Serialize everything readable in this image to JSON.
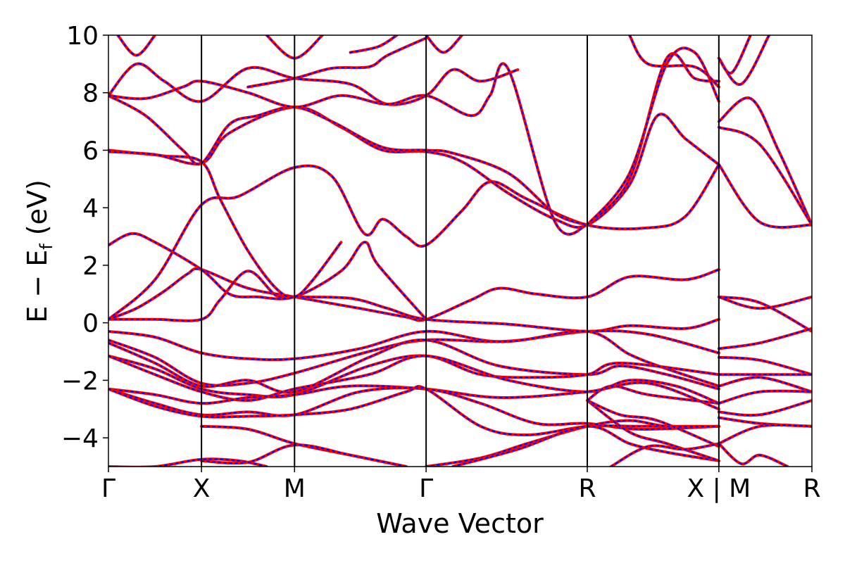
{
  "chart_data": {
    "type": "line",
    "title": "",
    "xlabel": "Wave Vector",
    "ylabel": "E − E",
    "ylabel_sub": "f",
    "ylabel_unit": " (eV)",
    "ylim": [
      -5,
      10
    ],
    "yticks": [
      -4,
      -2,
      0,
      2,
      4,
      6,
      8,
      10
    ],
    "ytick_labels": [
      "−4",
      "−2",
      "0",
      "2",
      "4",
      "6",
      "8",
      "10"
    ],
    "kpath": [
      {
        "label": "Γ",
        "k": 0.0
      },
      {
        "label": "X",
        "k": 1.0
      },
      {
        "label": "M",
        "k": 2.0
      },
      {
        "label": "Γ",
        "k": 3.414
      },
      {
        "label": "R",
        "k": 5.146
      },
      {
        "label": "X | M",
        "k": 6.56
      },
      {
        "label": "R",
        "k": 7.56
      }
    ],
    "vlines_k": [
      1.0,
      2.0,
      3.414,
      5.146,
      6.56
    ],
    "xlim": [
      0,
      7.56
    ],
    "grid": false,
    "series": [
      {
        "color": "#ff0000",
        "style": "solid",
        "width": 4
      },
      {
        "color": "#0000ff",
        "style": "dashed",
        "width": 2
      }
    ],
    "bands": [
      [
        [
          0,
          0.12
        ],
        [
          0.3,
          0.5
        ],
        [
          0.6,
          1.1
        ],
        [
          0.85,
          1.7
        ],
        [
          1.0,
          1.85
        ],
        [
          1.5,
          1.2
        ],
        [
          2.0,
          0.9
        ],
        [
          2.7,
          0.5
        ],
        [
          3.2,
          0.2
        ],
        [
          3.414,
          0.12
        ],
        [
          3.9,
          0.8
        ],
        [
          4.2,
          1.2
        ],
        [
          4.6,
          1.0
        ],
        [
          5.146,
          0.9
        ],
        [
          5.6,
          1.6
        ],
        [
          6.2,
          1.5
        ],
        [
          6.56,
          1.85
        ]
      ],
      [
        [
          0,
          0.12
        ],
        [
          0.5,
          0.12
        ],
        [
          1.0,
          0.12
        ],
        [
          1.2,
          0.8
        ],
        [
          1.5,
          1.8
        ],
        [
          1.8,
          0.95
        ],
        [
          2.0,
          0.9
        ],
        [
          2.6,
          0.85
        ],
        [
          3.0,
          0.5
        ],
        [
          3.414,
          0.12
        ],
        [
          4.3,
          -0.05
        ],
        [
          5.146,
          -0.3
        ],
        [
          5.6,
          -0.1
        ],
        [
          6.2,
          -0.2
        ],
        [
          6.56,
          0.12
        ]
      ],
      [
        [
          0,
          2.7
        ],
        [
          0.25,
          3.1
        ],
        [
          0.5,
          2.8
        ],
        [
          1.0,
          1.85
        ],
        [
          1.3,
          1.0
        ],
        [
          1.6,
          0.9
        ],
        [
          2.0,
          0.9
        ],
        [
          2.5,
          1.8
        ],
        [
          2.75,
          2.8
        ],
        [
          2.9,
          2.0
        ],
        [
          3.414,
          0.12
        ]
      ],
      [
        [
          0,
          0.12
        ],
        [
          0.5,
          1.5
        ],
        [
          1.0,
          4.1
        ],
        [
          1.4,
          4.4
        ],
        [
          2.0,
          5.4
        ],
        [
          2.4,
          5.1
        ],
        [
          2.75,
          3.1
        ],
        [
          2.95,
          3.6
        ],
        [
          3.2,
          3.0
        ],
        [
          3.414,
          2.7
        ],
        [
          3.8,
          3.9
        ],
        [
          4.1,
          4.9
        ],
        [
          4.5,
          4.3
        ],
        [
          5.146,
          3.4
        ],
        [
          5.8,
          3.3
        ],
        [
          6.2,
          3.7
        ],
        [
          6.56,
          5.5
        ]
      ],
      [
        [
          0,
          6.0
        ],
        [
          0.3,
          5.9
        ],
        [
          0.6,
          5.8
        ],
        [
          1.0,
          5.6
        ],
        [
          1.2,
          4.3
        ],
        [
          1.5,
          2.5
        ],
        [
          1.8,
          1.2
        ],
        [
          2.0,
          0.9
        ],
        [
          2.2,
          1.5
        ],
        [
          2.5,
          2.8
        ]
      ],
      [
        [
          0,
          5.95
        ],
        [
          0.5,
          5.85
        ],
        [
          1.0,
          5.55
        ],
        [
          1.3,
          6.6
        ],
        [
          2.0,
          7.5
        ],
        [
          2.5,
          6.8
        ],
        [
          2.95,
          6.0
        ],
        [
          3.414,
          5.95
        ],
        [
          3.8,
          5.6
        ],
        [
          4.3,
          4.5
        ],
        [
          4.8,
          3.6
        ],
        [
          5.146,
          3.4
        ],
        [
          5.6,
          4.8
        ],
        [
          5.9,
          7.2
        ],
        [
          6.2,
          6.4
        ],
        [
          6.56,
          5.5
        ]
      ],
      [
        [
          0,
          7.9
        ],
        [
          0.4,
          7.2
        ],
        [
          0.8,
          6.0
        ],
        [
          1.0,
          5.55
        ],
        [
          1.3,
          6.9
        ],
        [
          1.6,
          7.2
        ],
        [
          2.0,
          7.5
        ],
        [
          2.4,
          7.0
        ],
        [
          2.95,
          6.1
        ],
        [
          3.414,
          6.0
        ],
        [
          3.7,
          5.9
        ],
        [
          4.3,
          5.2
        ],
        [
          4.8,
          3.8
        ],
        [
          5.146,
          3.4
        ]
      ],
      [
        [
          0,
          7.9
        ],
        [
          0.3,
          9.0
        ],
        [
          0.6,
          8.4
        ],
        [
          1.0,
          7.7
        ],
        [
          1.5,
          8.85
        ],
        [
          2.0,
          8.5
        ],
        [
          2.6,
          8.3
        ],
        [
          3.0,
          7.6
        ],
        [
          3.414,
          7.9
        ],
        [
          3.7,
          8.8
        ],
        [
          4.0,
          8.4
        ],
        [
          4.4,
          8.8
        ]
      ],
      [
        [
          0,
          7.9
        ],
        [
          0.4,
          7.8
        ],
        [
          0.8,
          8.2
        ],
        [
          1.0,
          8.4
        ],
        [
          1.5,
          8.0
        ],
        [
          2.0,
          7.5
        ],
        [
          2.5,
          7.9
        ],
        [
          3.0,
          7.6
        ],
        [
          3.414,
          7.9
        ],
        [
          3.9,
          7.2
        ],
        [
          4.1,
          7.9
        ],
        [
          4.3,
          8.8
        ],
        [
          4.8,
          3.5
        ],
        [
          5.146,
          3.4
        ]
      ],
      [
        [
          0.1,
          10.0
        ],
        [
          0.3,
          9.3
        ],
        [
          0.5,
          10.0
        ]
      ],
      [
        [
          1.7,
          10.0
        ],
        [
          2.0,
          9.2
        ],
        [
          2.3,
          10.0
        ]
      ],
      [
        [
          1.5,
          8.2
        ],
        [
          2.0,
          8.5
        ],
        [
          2.4,
          8.85
        ],
        [
          2.8,
          8.9
        ],
        [
          3.0,
          9.3
        ],
        [
          3.414,
          9.9
        ]
      ],
      [
        [
          3.414,
          10.0
        ],
        [
          3.6,
          9.4
        ],
        [
          3.8,
          10.0
        ]
      ],
      [
        [
          2.6,
          9.4
        ],
        [
          2.9,
          9.6
        ],
        [
          3.1,
          10.0
        ]
      ],
      [
        [
          5.146,
          3.4
        ],
        [
          5.6,
          5.0
        ],
        [
          6.0,
          9.2
        ],
        [
          6.3,
          8.5
        ],
        [
          6.56,
          8.4
        ]
      ],
      [
        [
          5.146,
          3.4
        ],
        [
          5.6,
          5.2
        ],
        [
          6.0,
          9.0
        ],
        [
          6.3,
          9.4
        ],
        [
          6.56,
          7.7
        ]
      ],
      [
        [
          5.6,
          10.0
        ],
        [
          5.8,
          9.0
        ],
        [
          6.3,
          8.9
        ],
        [
          6.56,
          8.2
        ]
      ],
      [
        [
          6.56,
          9.2
        ],
        [
          6.8,
          8.3
        ],
        [
          7.1,
          10.0
        ]
      ],
      [
        [
          6.56,
          9.2
        ],
        [
          6.7,
          8.7
        ],
        [
          6.9,
          10.0
        ]
      ],
      [
        [
          6.56,
          7.0
        ],
        [
          6.9,
          7.8
        ],
        [
          7.2,
          6.0
        ],
        [
          7.56,
          3.4
        ]
      ],
      [
        [
          6.56,
          6.8
        ],
        [
          7.0,
          6.2
        ],
        [
          7.56,
          3.4
        ]
      ],
      [
        [
          6.56,
          5.5
        ],
        [
          7.0,
          3.5
        ],
        [
          7.56,
          3.4
        ]
      ],
      [
        [
          6.56,
          0.9
        ],
        [
          7.0,
          0.7
        ],
        [
          7.56,
          -0.3
        ]
      ],
      [
        [
          6.56,
          0.9
        ],
        [
          7.0,
          0.5
        ],
        [
          7.56,
          0.9
        ]
      ],
      [
        [
          0,
          -0.3
        ],
        [
          0.5,
          -0.5
        ],
        [
          1.0,
          -1.05
        ],
        [
          1.5,
          -1.25
        ],
        [
          2.0,
          -1.25
        ],
        [
          2.7,
          -0.9
        ],
        [
          3.414,
          -0.3
        ],
        [
          4.2,
          -0.65
        ],
        [
          5.146,
          -0.3
        ],
        [
          5.8,
          -0.4
        ],
        [
          6.56,
          -1.05
        ]
      ],
      [
        [
          0,
          -0.6
        ],
        [
          0.5,
          -1.2
        ],
        [
          1.0,
          -2.1
        ],
        [
          1.5,
          -2.1
        ],
        [
          2.0,
          -1.75
        ],
        [
          2.8,
          -1.0
        ],
        [
          3.414,
          -0.6
        ],
        [
          4.3,
          -0.65
        ],
        [
          5.146,
          -0.3
        ],
        [
          5.6,
          -1.1
        ],
        [
          6.0,
          -1.6
        ],
        [
          6.56,
          -2.2
        ]
      ],
      [
        [
          0,
          -0.7
        ],
        [
          0.5,
          -1.4
        ],
        [
          1.0,
          -2.2
        ],
        [
          1.5,
          -2.0
        ],
        [
          2.0,
          -2.4
        ],
        [
          2.8,
          -1.2
        ],
        [
          3.414,
          -0.6
        ],
        [
          4.2,
          -1.5
        ],
        [
          5.146,
          -1.8
        ],
        [
          5.5,
          -1.5
        ],
        [
          6.0,
          -1.8
        ],
        [
          6.56,
          -2.3
        ]
      ],
      [
        [
          0,
          -1.15
        ],
        [
          0.5,
          -1.6
        ],
        [
          1.0,
          -2.3
        ],
        [
          1.5,
          -2.5
        ],
        [
          2.0,
          -2.5
        ],
        [
          2.8,
          -1.5
        ],
        [
          3.414,
          -1.15
        ],
        [
          4.0,
          -1.8
        ],
        [
          4.6,
          -1.9
        ],
        [
          5.146,
          -1.8
        ],
        [
          5.5,
          -1.4
        ],
        [
          6.56,
          -1.8
        ]
      ],
      [
        [
          0,
          -1.15
        ],
        [
          0.5,
          -1.8
        ],
        [
          1.0,
          -2.4
        ],
        [
          1.5,
          -2.7
        ],
        [
          2.0,
          -2.3
        ],
        [
          2.8,
          -1.8
        ],
        [
          3.414,
          -1.15
        ],
        [
          4.3,
          -2.0
        ],
        [
          5.146,
          -2.4
        ],
        [
          5.6,
          -2.0
        ],
        [
          6.1,
          -2.2
        ],
        [
          6.56,
          -2.8
        ]
      ],
      [
        [
          0,
          -2.3
        ],
        [
          0.5,
          -2.5
        ],
        [
          1.0,
          -2.8
        ],
        [
          1.5,
          -2.6
        ],
        [
          2.0,
          -2.5
        ],
        [
          2.6,
          -2.2
        ],
        [
          3.414,
          -2.3
        ],
        [
          4.2,
          -2.6
        ],
        [
          5.146,
          -2.4
        ],
        [
          5.8,
          -2.1
        ],
        [
          6.56,
          -3.0
        ]
      ],
      [
        [
          0,
          -2.3
        ],
        [
          0.5,
          -2.8
        ],
        [
          1.0,
          -3.2
        ],
        [
          1.5,
          -3.1
        ],
        [
          2.0,
          -3.2
        ],
        [
          2.7,
          -2.4
        ],
        [
          3.414,
          -2.3
        ],
        [
          4.0,
          -2.8
        ],
        [
          4.6,
          -3.5
        ],
        [
          5.146,
          -3.5
        ],
        [
          5.7,
          -3.7
        ],
        [
          6.56,
          -3.6
        ]
      ],
      [
        [
          0,
          -2.3
        ],
        [
          0.5,
          -2.9
        ],
        [
          1.0,
          -3.25
        ],
        [
          1.5,
          -3.25
        ],
        [
          2.0,
          -3.2
        ],
        [
          2.6,
          -3.0
        ],
        [
          3.2,
          -2.4
        ],
        [
          3.414,
          -2.3
        ],
        [
          4.0,
          -3.6
        ],
        [
          4.5,
          -3.9
        ],
        [
          5.146,
          -3.6
        ],
        [
          5.7,
          -3.6
        ],
        [
          6.56,
          -3.6
        ]
      ],
      [
        [
          1.0,
          -3.6
        ],
        [
          1.5,
          -3.7
        ],
        [
          2.0,
          -4.2
        ],
        [
          2.6,
          -4.6
        ],
        [
          3.2,
          -5.0
        ]
      ],
      [
        [
          1.0,
          -4.8
        ],
        [
          1.5,
          -4.85
        ],
        [
          2.0,
          -4.25
        ],
        [
          2.6,
          -4.6
        ],
        [
          3.2,
          -5.0
        ]
      ],
      [
        [
          0,
          -5.0
        ],
        [
          0.5,
          -5.0
        ],
        [
          1.0,
          -4.75
        ],
        [
          1.4,
          -4.8
        ],
        [
          1.7,
          -5.0
        ]
      ],
      [
        [
          3.414,
          -5.0
        ],
        [
          4.0,
          -4.7
        ],
        [
          4.5,
          -4.2
        ],
        [
          5.146,
          -3.6
        ],
        [
          5.6,
          -3.4
        ],
        [
          6.0,
          -3.6
        ],
        [
          6.56,
          -3.6
        ]
      ],
      [
        [
          3.7,
          -5.0
        ],
        [
          4.4,
          -4.4
        ],
        [
          5.146,
          -3.6
        ],
        [
          5.6,
          -4.2
        ],
        [
          6.0,
          -4.5
        ],
        [
          6.56,
          -4.8
        ]
      ],
      [
        [
          5.146,
          -2.7
        ],
        [
          5.6,
          -3.8
        ],
        [
          6.0,
          -4.2
        ],
        [
          6.56,
          -4.8
        ]
      ],
      [
        [
          5.146,
          -2.7
        ],
        [
          5.5,
          -3.2
        ],
        [
          5.9,
          -3.4
        ],
        [
          6.56,
          -4.3
        ]
      ],
      [
        [
          5.146,
          -2.7
        ],
        [
          5.4,
          -2.2
        ],
        [
          5.8,
          -2.5
        ],
        [
          6.56,
          -2.8
        ]
      ],
      [
        [
          5.4,
          -5.0
        ],
        [
          5.8,
          -4.3
        ],
        [
          6.2,
          -4.4
        ],
        [
          6.56,
          -4.2
        ]
      ],
      [
        [
          6.56,
          -1.2
        ],
        [
          7.0,
          -1.3
        ],
        [
          7.56,
          -1.8
        ]
      ],
      [
        [
          6.56,
          -1.8
        ],
        [
          7.0,
          -1.8
        ],
        [
          7.56,
          -1.8
        ]
      ],
      [
        [
          6.56,
          -2.2
        ],
        [
          7.0,
          -1.9
        ],
        [
          7.56,
          -2.4
        ]
      ],
      [
        [
          6.56,
          -2.8
        ],
        [
          7.0,
          -2.4
        ],
        [
          7.56,
          -2.4
        ]
      ],
      [
        [
          6.56,
          -3.1
        ],
        [
          7.0,
          -3.2
        ],
        [
          7.56,
          -2.7
        ]
      ],
      [
        [
          6.56,
          -3.3
        ],
        [
          7.0,
          -3.5
        ],
        [
          7.56,
          -3.6
        ]
      ],
      [
        [
          6.56,
          -4.2
        ],
        [
          7.0,
          -3.6
        ],
        [
          7.56,
          -3.6
        ]
      ],
      [
        [
          6.56,
          -4.2
        ],
        [
          6.8,
          -4.9
        ],
        [
          7.0,
          -4.6
        ],
        [
          7.3,
          -5.0
        ]
      ],
      [
        [
          6.56,
          -0.9
        ],
        [
          7.0,
          -0.7
        ],
        [
          7.56,
          -0.2
        ]
      ]
    ]
  }
}
